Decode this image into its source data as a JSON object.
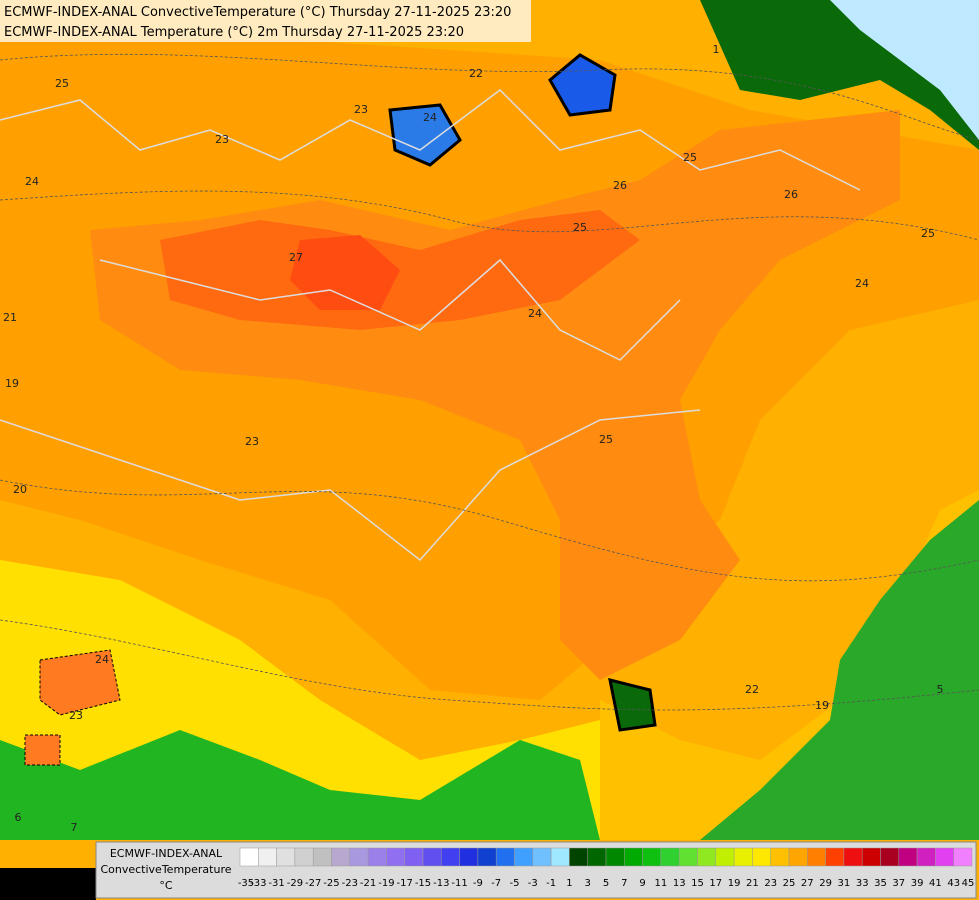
{
  "header": {
    "line1": "ECMWF-INDEX-ANAL ConvectiveTemperature (°C) Thursday 27-11-2025 23:20",
    "line2": "ECMWF-INDEX-ANAL Temperature (°C) 2m Thursday 27-11-2025 23:20"
  },
  "map": {
    "contour_labels": [
      25,
      22,
      23,
      23,
      24,
      27,
      26,
      25,
      24,
      24,
      25,
      21,
      19,
      23,
      20,
      24,
      23,
      25,
      22,
      19,
      5,
      6,
      7,
      1,
      26,
      24,
      25
    ]
  },
  "colorbar": {
    "title1": "ECMWF-INDEX-ANAL",
    "title2": "ConvectiveTemperature",
    "unit": "°C",
    "ticks": [
      -35,
      -33,
      -31,
      -29,
      -27,
      -25,
      -23,
      -21,
      -19,
      -17,
      -15,
      -13,
      -11,
      -9,
      -7,
      -5,
      -3,
      -1,
      1,
      3,
      5,
      7,
      9,
      11,
      13,
      15,
      17,
      19,
      21,
      23,
      25,
      27,
      29,
      31,
      33,
      35,
      37,
      39,
      41,
      43,
      45
    ],
    "colors": [
      "#ffffff",
      "#f0f0f0",
      "#e0e0e0",
      "#d0d0d0",
      "#c0c0c0",
      "#b8a8d0",
      "#a898e0",
      "#9a80e8",
      "#9070f0",
      "#8060f0",
      "#6050f0",
      "#4040f0",
      "#2030e0",
      "#1040d0",
      "#2070f0",
      "#40a0ff",
      "#70c0ff",
      "#a0e8ff",
      "#004400",
      "#006600",
      "#008800",
      "#00aa00",
      "#10c010",
      "#30d030",
      "#60e030",
      "#90e820",
      "#c0f000",
      "#e8f000",
      "#ffe800",
      "#ffc000",
      "#ffa500",
      "#ff8000",
      "#ff4000",
      "#ee1010",
      "#cc0000",
      "#aa0020",
      "#c00080",
      "#d020c0",
      "#e040f0",
      "#f080ff"
    ]
  }
}
